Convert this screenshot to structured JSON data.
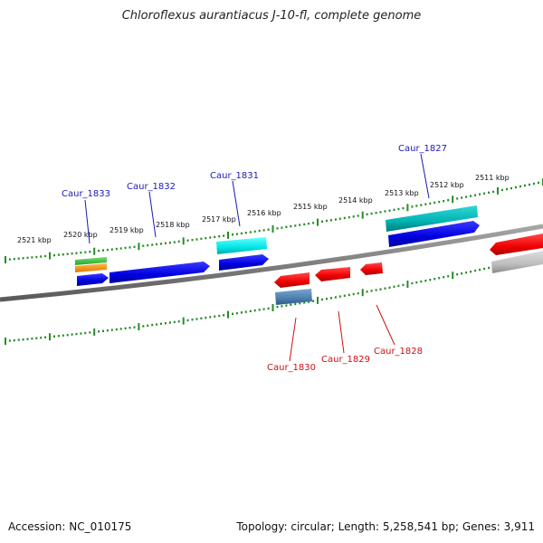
{
  "title": "Chloroflexus aurantiacus J-10-fl, complete genome",
  "footer": {
    "accession": "Accession: NC_010175",
    "topology": "Topology: circular; Length: 5,258,541 bp; Genes: 3,911"
  },
  "kbp_labels": [
    "2521 kbp",
    "2520 kbp",
    "2519 kbp",
    "2518 kbp",
    "2517 kbp",
    "2516 kbp",
    "2515 kbp",
    "2514 kbp",
    "2513 kbp",
    "2512 kbp",
    "2511 kbp"
  ],
  "genes": {
    "forward": [
      "Caur_1833",
      "Caur_1832",
      "Caur_1831",
      "Caur_1827"
    ],
    "reverse": [
      "Caur_1830",
      "Caur_1829",
      "Caur_1828"
    ]
  },
  "colors": {
    "forward_label": "#1a1ab5",
    "reverse_label": "#cc1111",
    "tick": "#2a8a2a",
    "backbone": "#7a7a7a"
  }
}
